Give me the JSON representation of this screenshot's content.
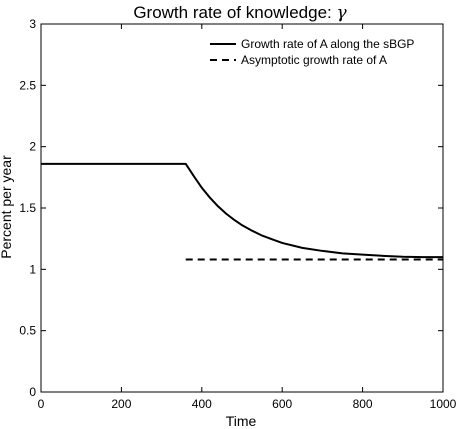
{
  "chart_data": {
    "type": "line",
    "title": "Growth rate of knowledge:",
    "title_symbol": "γ",
    "xlabel": "Time",
    "ylabel": "Percent per year",
    "xlim": [
      0,
      1000
    ],
    "ylim": [
      0,
      3
    ],
    "x_ticks": [
      0,
      200,
      400,
      600,
      800,
      1000
    ],
    "y_ticks": [
      0,
      0.5,
      1,
      1.5,
      2,
      2.5,
      3
    ],
    "x_tick_labels": [
      "0",
      "200",
      "400",
      "600",
      "800",
      "1000"
    ],
    "y_tick_labels": [
      "0",
      "0.5",
      "1",
      "1.5",
      "2",
      "2.5",
      "3"
    ],
    "grid": false,
    "legend_position": "top-right",
    "series": [
      {
        "name": "Growth rate of A along the sBGP",
        "style": "solid",
        "color": "#000000",
        "x": [
          0,
          360,
          380,
          400,
          420,
          440,
          460,
          480,
          500,
          525,
          550,
          575,
          600,
          650,
          700,
          750,
          800,
          850,
          900,
          950,
          1000
        ],
        "y": [
          1.86,
          1.86,
          1.76,
          1.665,
          1.585,
          1.515,
          1.455,
          1.405,
          1.36,
          1.315,
          1.275,
          1.245,
          1.215,
          1.175,
          1.15,
          1.13,
          1.12,
          1.11,
          1.103,
          1.1,
          1.1
        ]
      },
      {
        "name": "Asymptotic growth rate of A",
        "style": "dashed",
        "color": "#000000",
        "x": [
          360,
          1000
        ],
        "y": [
          1.08,
          1.08
        ]
      }
    ]
  }
}
